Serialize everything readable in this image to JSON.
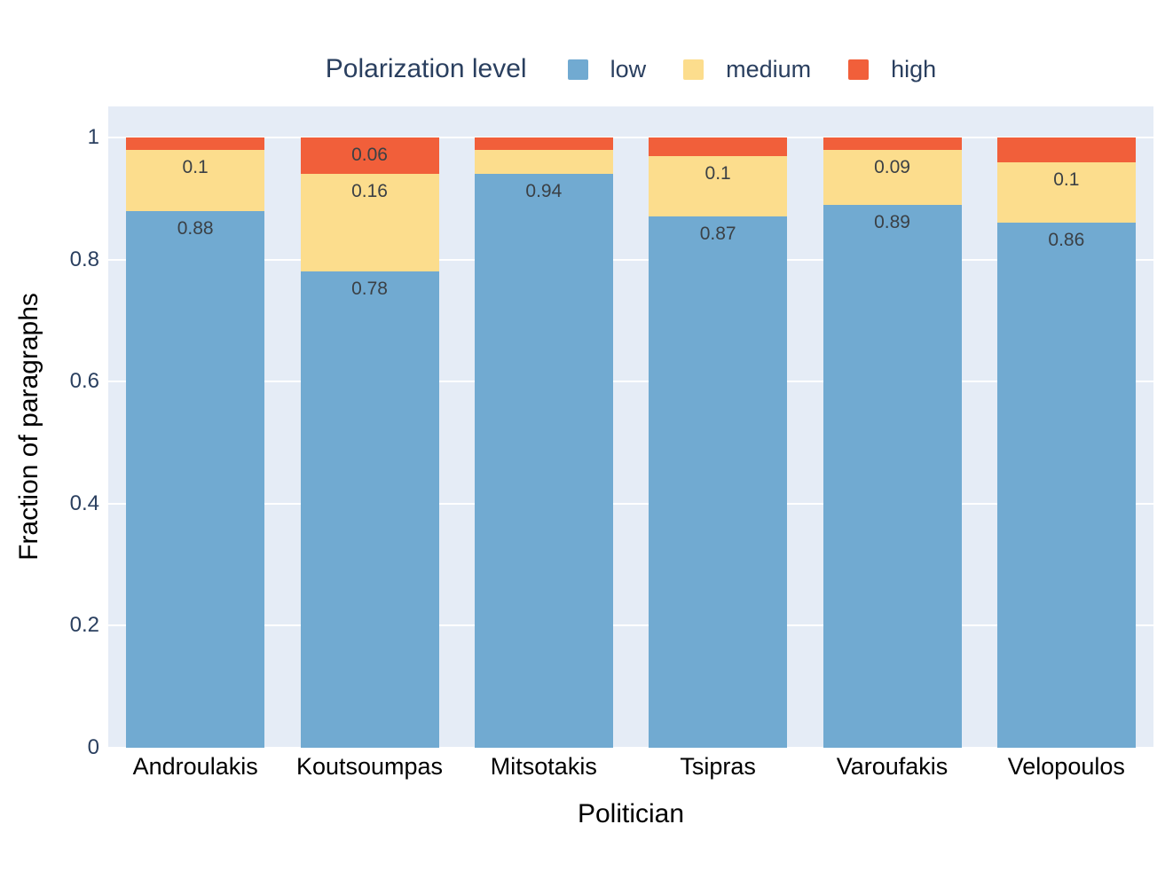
{
  "chart_data": {
    "type": "bar",
    "stacked": true,
    "orientation": "vertical",
    "legend_title": "Polarization level",
    "legend_position": "top-center",
    "xlabel": "Politician",
    "ylabel": "Fraction of paragraphs",
    "categories": [
      "Androulakis",
      "Koutsoumpas",
      "Mitsotakis",
      "Tsipras",
      "Varoufakis",
      "Velopoulos"
    ],
    "series": [
      {
        "name": "low",
        "color": "#71aad1",
        "values": [
          0.88,
          0.78,
          0.94,
          0.87,
          0.89,
          0.86
        ],
        "bar_labels": [
          "0.88",
          "0.78",
          "0.94",
          "0.87",
          "0.89",
          "0.86"
        ]
      },
      {
        "name": "medium",
        "color": "#fcdd8d",
        "values": [
          0.1,
          0.16,
          0.04,
          0.1,
          0.09,
          0.1
        ],
        "bar_labels": [
          "0.1",
          "0.16",
          "",
          "0.1",
          "0.09",
          "0.1"
        ]
      },
      {
        "name": "high",
        "color": "#f15f3a",
        "values": [
          0.02,
          0.06,
          0.02,
          0.03,
          0.02,
          0.04
        ],
        "bar_labels": [
          "",
          "0.06",
          "",
          "",
          "",
          ""
        ]
      }
    ],
    "y_ticks": [
      "0",
      "0.2",
      "0.4",
      "0.6",
      "0.8",
      "1"
    ],
    "ylim": [
      0,
      1.05
    ],
    "grid": "on",
    "grid_color": "#ffffff",
    "plot_bg": "#e5ecf6",
    "page_bg": "#ffffff"
  }
}
